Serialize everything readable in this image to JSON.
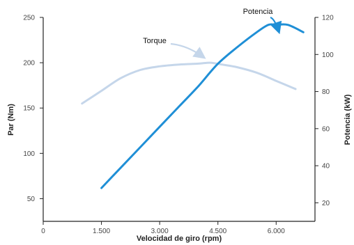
{
  "chart_data": {
    "type": "line",
    "xlabel": "Velocidad de giro (rpm)",
    "ylabel_left": "Par (Nm)",
    "ylabel_right": "Potencia (kW)",
    "xlim": [
      0,
      7000
    ],
    "ylim_left": [
      25,
      250
    ],
    "ylim_right": [
      10,
      120
    ],
    "x_ticks": [
      {
        "value": 0,
        "label": "0"
      },
      {
        "value": 1500,
        "label": "1.500"
      },
      {
        "value": 3000,
        "label": "3.000"
      },
      {
        "value": 4500,
        "label": "4.500"
      },
      {
        "value": 6000,
        "label": "6.000"
      }
    ],
    "y_ticks_left": [
      {
        "value": 50,
        "label": "50"
      },
      {
        "value": 100,
        "label": "100"
      },
      {
        "value": 150,
        "label": "150"
      },
      {
        "value": 200,
        "label": "200"
      },
      {
        "value": 250,
        "label": "250"
      }
    ],
    "y_ticks_right": [
      {
        "value": 20,
        "label": "20"
      },
      {
        "value": 40,
        "label": "40"
      },
      {
        "value": 60,
        "label": "60"
      },
      {
        "value": 80,
        "label": "80"
      },
      {
        "value": 100,
        "label": "100"
      },
      {
        "value": 120,
        "label": "120"
      }
    ],
    "series": [
      {
        "name": "Torque",
        "axis": "left",
        "color": "#c5d6ea",
        "x": [
          1000,
          1500,
          2000,
          2500,
          3000,
          3500,
          4000,
          4300,
          4600,
          5000,
          5500,
          6000,
          6500
        ],
        "y": [
          155,
          169,
          183,
          192,
          196,
          198,
          199,
          200,
          198,
          195,
          189,
          180,
          171
        ]
      },
      {
        "name": "Potencia",
        "axis": "right",
        "color": "#1f8fd6",
        "x": [
          1500,
          2000,
          2500,
          3000,
          3500,
          4000,
          4500,
          5000,
          5500,
          5800,
          6000,
          6300,
          6700
        ],
        "y": [
          28,
          39,
          50,
          61,
          72,
          83,
          95,
          104,
          112,
          116,
          116,
          116,
          112
        ]
      }
    ],
    "annotations": [
      {
        "text": "Torque",
        "series": "Torque"
      },
      {
        "text": "Potencia",
        "series": "Potencia"
      }
    ],
    "grid": false
  }
}
